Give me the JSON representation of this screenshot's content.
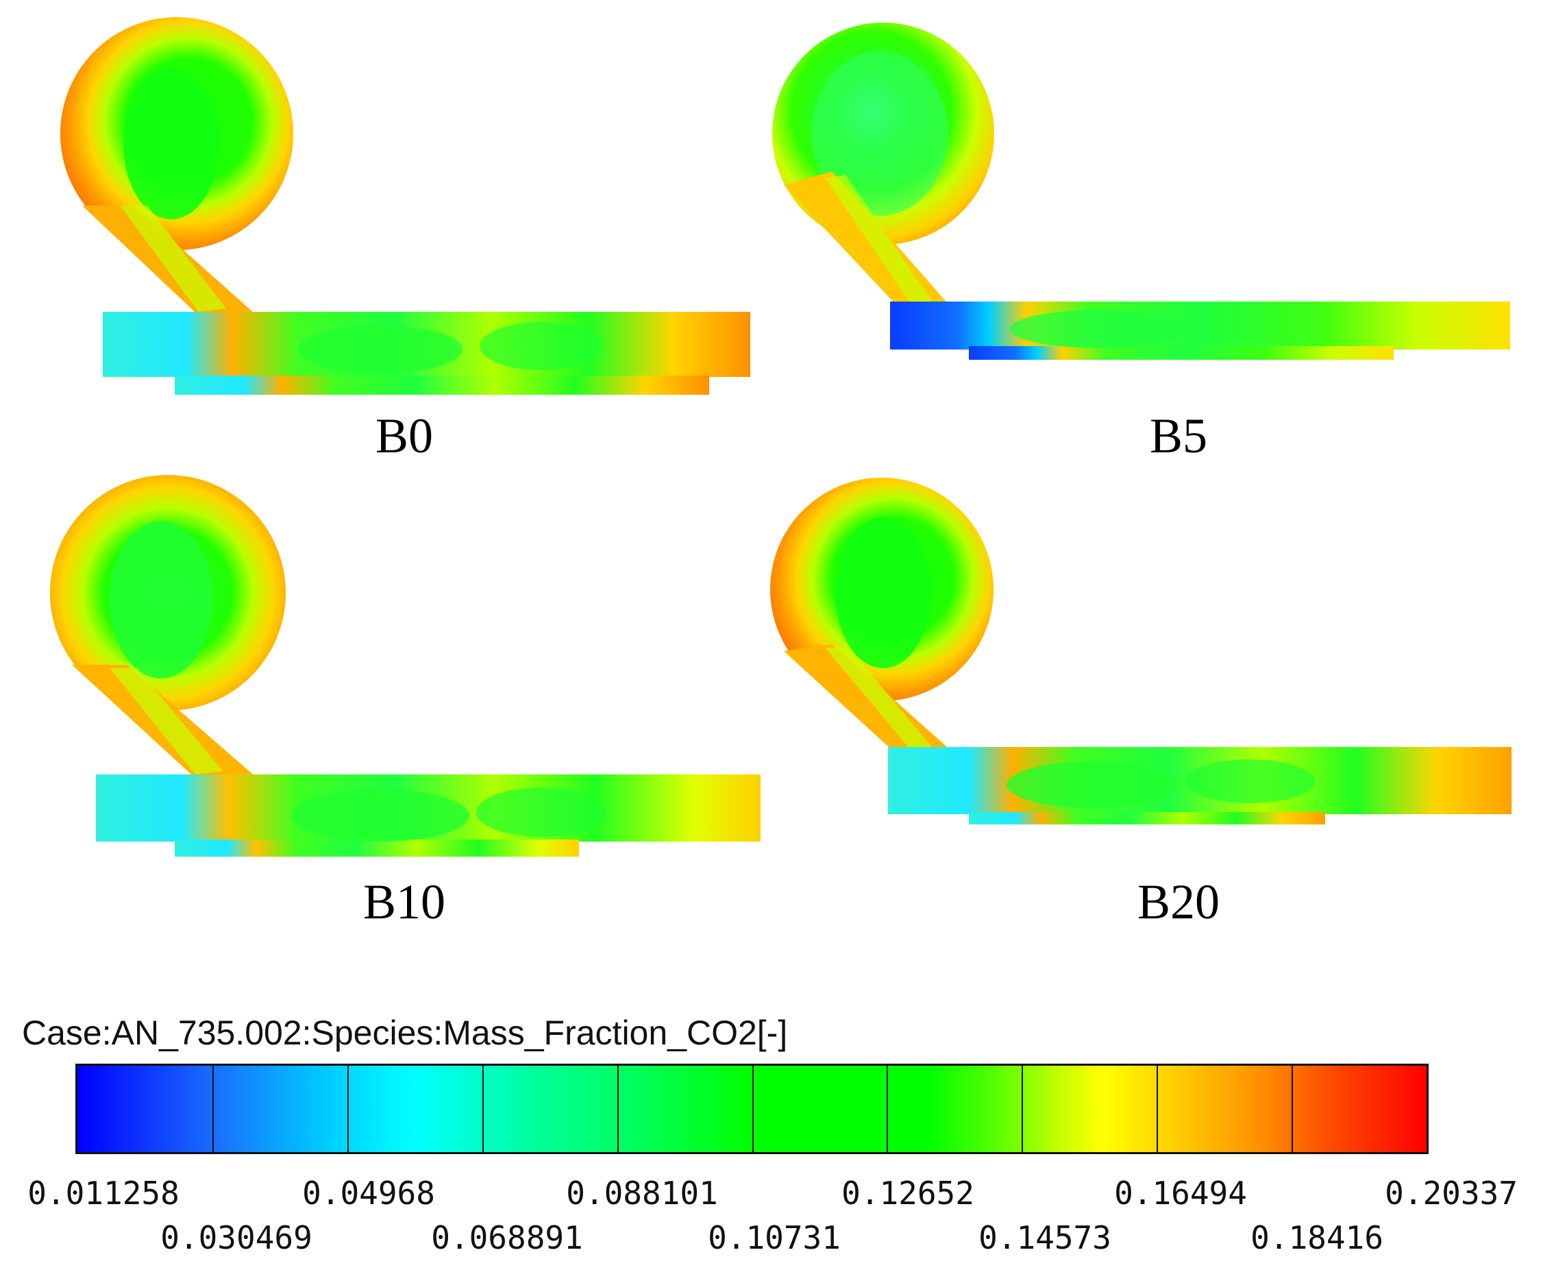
{
  "panels": [
    {
      "label": "B0"
    },
    {
      "label": "B5"
    },
    {
      "label": "B10"
    },
    {
      "label": "B20"
    }
  ],
  "legend": {
    "title": "Case:AN_735.002:Species:Mass_Fraction_CO2[-]",
    "colormap": [
      "#0000ff",
      "#00ffff",
      "#00ff00",
      "#ffff00",
      "#ff0000"
    ],
    "ticks_top": [
      "0.011258",
      "0.04968",
      "0.088101",
      "0.12652",
      "0.16494",
      "0.20337"
    ],
    "ticks_bottom": [
      "0.030469",
      "0.068891",
      "0.10731",
      "0.14573",
      "0.18416"
    ]
  }
}
